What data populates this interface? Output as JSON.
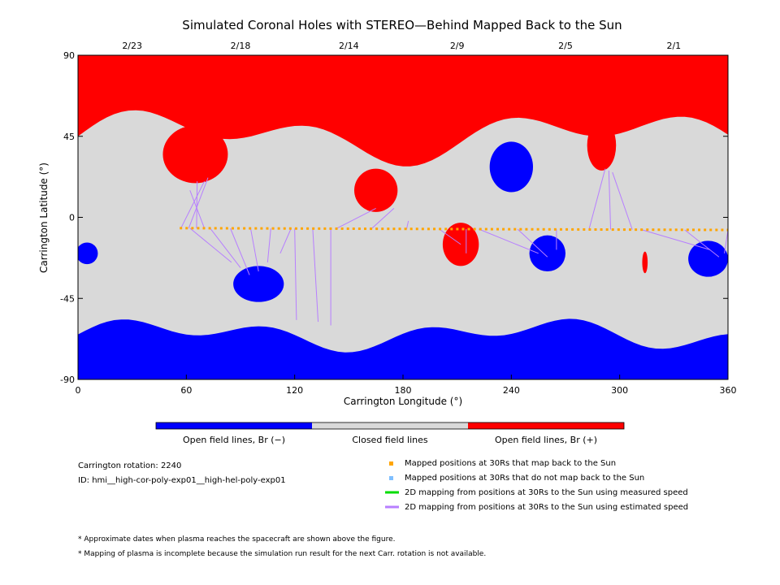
{
  "title": "Simulated Coronal Holes with STEREO—Behind Mapped Back to the Sun",
  "chart_data": {
    "type": "heatmap",
    "title": "Simulated Coronal Holes with STEREO—Behind Mapped Back to the Sun",
    "xlabel": "Carrington Longitude (°)",
    "ylabel": "Carrington Latitude (°)",
    "xlim": [
      0,
      360
    ],
    "ylim": [
      -90,
      90
    ],
    "x_ticks": [
      0,
      60,
      120,
      180,
      240,
      300,
      360
    ],
    "y_ticks": [
      90,
      45,
      0,
      -45,
      -90
    ],
    "top_axis": {
      "labels": [
        "2/23",
        "2/18",
        "2/14",
        "2/9",
        "2/5",
        "2/1"
      ],
      "longitudes": [
        30,
        90,
        150,
        210,
        270,
        330
      ]
    },
    "colors": {
      "open_negative": "#0000ff",
      "closed": "#d9d9d9",
      "open_positive": "#ff0000",
      "mapped_point": "#ffa500",
      "unmapped_point": "#7fbfff",
      "measured_line": "#00dd00",
      "estimated_line": "#b77fff"
    },
    "polar_regions": {
      "north_positive_open_boundary_lat_approx": [
        62,
        28
      ],
      "south_negative_open_boundary_lat_approx": [
        -55,
        -75
      ]
    },
    "coronal_holes": [
      {
        "polarity": "+",
        "lon": 65,
        "lat": 35,
        "rx": 18,
        "ry": 16
      },
      {
        "polarity": "+",
        "lon": 165,
        "lat": 15,
        "rx": 12,
        "ry": 12
      },
      {
        "polarity": "+",
        "lon": 212,
        "lat": -15,
        "rx": 10,
        "ry": 12
      },
      {
        "polarity": "+",
        "lon": 290,
        "lat": 40,
        "rx": 8,
        "ry": 14
      },
      {
        "polarity": "+",
        "lon": 314,
        "lat": -25,
        "rx": 1.5,
        "ry": 6
      },
      {
        "polarity": "-",
        "lon": 5,
        "lat": -20,
        "rx": 6,
        "ry": 6
      },
      {
        "polarity": "-",
        "lon": 100,
        "lat": -37,
        "rx": 14,
        "ry": 10
      },
      {
        "polarity": "-",
        "lon": 240,
        "lat": 28,
        "rx": 12,
        "ry": 14
      },
      {
        "polarity": "-",
        "lon": 260,
        "lat": -20,
        "rx": 10,
        "ry": 10
      },
      {
        "polarity": "-",
        "lon": 349,
        "lat": -23,
        "rx": 11,
        "ry": 10
      }
    ],
    "mapped_track": {
      "lon_start": 57,
      "lat_start": -6,
      "lon_end": 360,
      "lat_end": -7,
      "count": 96
    },
    "estimated_mapping_groups": [
      {
        "from_lon": [
          57,
          70
        ],
        "to": [
          [
            70,
            20
          ],
          [
            72,
            22
          ],
          [
            66,
            20
          ],
          [
            62,
            15
          ]
        ]
      },
      {
        "from_lon": [
          62,
          118
        ],
        "to": [
          [
            85,
            -25
          ],
          [
            90,
            -28
          ],
          [
            95,
            -32
          ],
          [
            100,
            -30
          ],
          [
            105,
            -25
          ],
          [
            112,
            -20
          ]
        ]
      },
      {
        "from_lon": [
          120,
          140
        ],
        "to": [
          [
            121,
            -57
          ],
          [
            133,
            -58
          ],
          [
            140,
            -60
          ]
        ]
      },
      {
        "from_lon": [
          143,
          182
        ],
        "to": [
          [
            165,
            5
          ],
          [
            175,
            5
          ],
          [
            183,
            -2
          ]
        ]
      },
      {
        "from_lon": [
          200,
          215
        ],
        "to": [
          [
            212,
            -15
          ],
          [
            215,
            -20
          ]
        ]
      },
      {
        "from_lon": [
          222,
          265
        ],
        "to": [
          [
            255,
            -20
          ],
          [
            260,
            -22
          ],
          [
            265,
            -18
          ]
        ]
      },
      {
        "from_lon": [
          283,
          307
        ],
        "to": [
          [
            292,
            27
          ],
          [
            294,
            26
          ],
          [
            296,
            25
          ]
        ]
      },
      {
        "from_lon": [
          312,
          360
        ],
        "to": [
          [
            350,
            -18
          ],
          [
            355,
            -22
          ],
          [
            358,
            -20
          ]
        ]
      }
    ],
    "colorbar": {
      "labels": [
        "Open field lines, Br (−)",
        "Closed field lines",
        "Open field lines, Br (+)"
      ]
    }
  },
  "info": {
    "carrington_rotation": "Carrington rotation: 2240",
    "id": "ID: hmi__high-cor-poly-exp01__high-hel-poly-exp01"
  },
  "legend": [
    "Mapped positions at 30Rs that map back to the Sun",
    "Mapped positions at 30Rs that do not map back to the Sun",
    "2D mapping from positions at 30Rs to the Sun using measured speed",
    "2D mapping from positions at 30Rs to the Sun using estimated speed"
  ],
  "notes": [
    "* Approximate dates when plasma reaches the spacecraft are shown above the figure.",
    "* Mapping of plasma is incomplete because the simulation run result for the next Carr. rotation is not available."
  ]
}
